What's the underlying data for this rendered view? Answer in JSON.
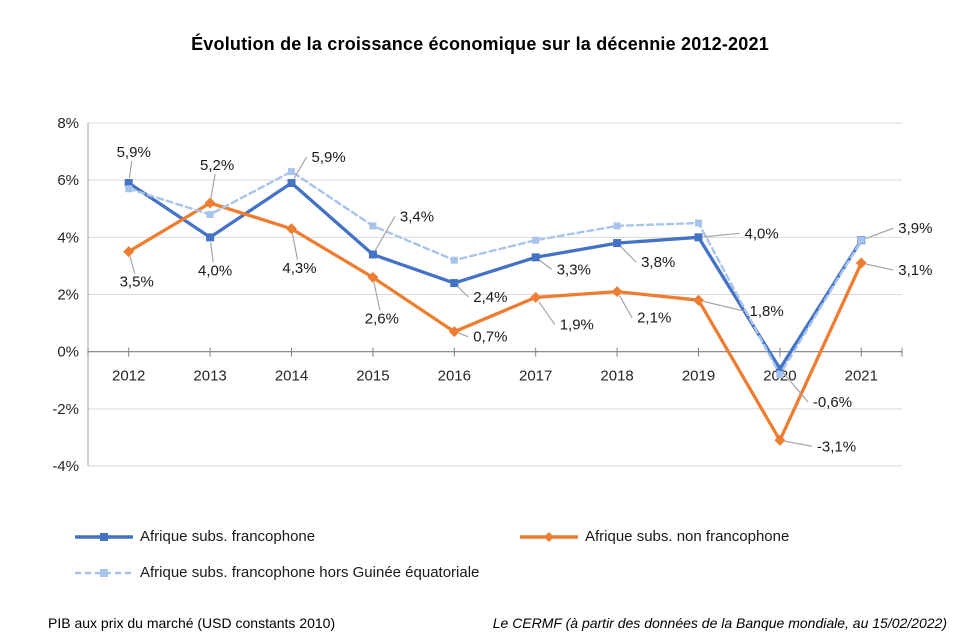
{
  "title": "Évolution de la croissance économique sur la décennie 2012-2021",
  "footer": {
    "left": "PIB aux prix du marché (USD constants 2010)",
    "right": "Le CERMF (à partir des données de la Banque mondiale, au 15/02/2022)"
  },
  "chart_data": {
    "type": "line",
    "title": "Évolution de la croissance économique sur la décennie 2012-2021",
    "xlabel": "",
    "ylabel": "",
    "grid": true,
    "legend_position": "bottom",
    "categories": [
      "2012",
      "2013",
      "2014",
      "2015",
      "2016",
      "2017",
      "2018",
      "2019",
      "2020",
      "2021"
    ],
    "ylim": [
      -4,
      8
    ],
    "yticks": [
      {
        "value": 8,
        "label": "8%"
      },
      {
        "value": 6,
        "label": "6%"
      },
      {
        "value": 4,
        "label": "4%"
      },
      {
        "value": 2,
        "label": "2%"
      },
      {
        "value": 0,
        "label": "0%"
      },
      {
        "value": -2,
        "label": "-2%"
      },
      {
        "value": -4,
        "label": "-4%"
      }
    ],
    "colors": {
      "grid": "#D9D9D9",
      "axis": "#808080",
      "plot_border": "#A6A6A6",
      "leader": "#A6A6A6",
      "text": "#262626",
      "label_text": "#1a1a1a"
    },
    "series": [
      {
        "name": "Afrique subs. francophone",
        "color": "#4472C4",
        "line_style": "solid",
        "marker": "square",
        "values": [
          5.9,
          4.0,
          5.9,
          3.4,
          2.4,
          3.3,
          3.8,
          4.0,
          -0.6,
          3.9
        ],
        "labels": [
          {
            "text": "5,9%",
            "anchor": "middle",
            "dx": 5,
            "dy": -26
          },
          {
            "text": "4,0%",
            "anchor": "middle",
            "dx": 5,
            "dy": 38
          },
          {
            "text": "5,9%",
            "anchor": "start",
            "dx": 20,
            "dy": -21
          },
          {
            "text": "3,4%",
            "anchor": "start",
            "dx": 27,
            "dy": -33
          },
          {
            "text": "2,4%",
            "anchor": "start",
            "dx": 19,
            "dy": 19
          },
          {
            "text": "3,3%",
            "anchor": "start",
            "dx": 21,
            "dy": 17
          },
          {
            "text": "3,8%",
            "anchor": "start",
            "dx": 24,
            "dy": 24
          },
          {
            "text": "4,0%",
            "anchor": "start",
            "dx": 46,
            "dy": 1
          },
          {
            "text": "-0,6%",
            "anchor": "start",
            "dx": 33,
            "dy": 38
          },
          {
            "text": "3,9%",
            "anchor": "start",
            "dx": 37,
            "dy": -7
          }
        ]
      },
      {
        "name": "Afrique subs. non francophone",
        "color": "#ED7D31",
        "line_style": "solid",
        "marker": "diamond",
        "values": [
          3.5,
          5.2,
          4.3,
          2.6,
          0.7,
          1.9,
          2.1,
          1.8,
          -3.1,
          3.1
        ],
        "labels": [
          {
            "text": "3,5%",
            "anchor": "middle",
            "dx": 8,
            "dy": 35
          },
          {
            "text": "5,2%",
            "anchor": "middle",
            "dx": 7,
            "dy": -33
          },
          {
            "text": "4,3%",
            "anchor": "middle",
            "dx": 8,
            "dy": 44
          },
          {
            "text": "2,6%",
            "anchor": "middle",
            "dx": 9,
            "dy": 46
          },
          {
            "text": "0,7%",
            "anchor": "start",
            "dx": 19,
            "dy": 10
          },
          {
            "text": "1,9%",
            "anchor": "start",
            "dx": 24,
            "dy": 32
          },
          {
            "text": "2,1%",
            "anchor": "start",
            "dx": 20,
            "dy": 31
          },
          {
            "text": "1,8%",
            "anchor": "start",
            "dx": 51,
            "dy": 16
          },
          {
            "text": "-3,1%",
            "anchor": "start",
            "dx": 37,
            "dy": 11
          },
          {
            "text": "3,1%",
            "anchor": "start",
            "dx": 37,
            "dy": 12
          }
        ]
      },
      {
        "name": "Afrique subs. francophone hors Guinée équatoriale",
        "color": "#A8C4EA",
        "line_style": "dashed",
        "marker": "square",
        "values": [
          5.7,
          4.8,
          6.3,
          4.4,
          3.2,
          3.9,
          4.4,
          4.5,
          -0.8,
          3.9
        ],
        "labels": []
      }
    ]
  }
}
